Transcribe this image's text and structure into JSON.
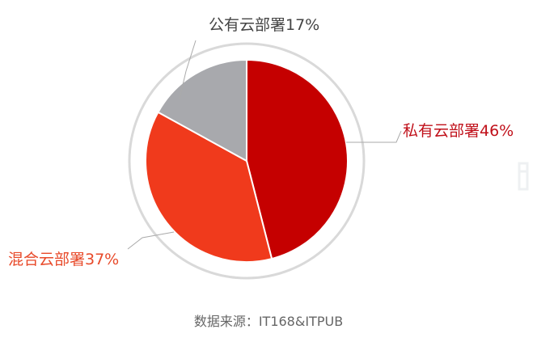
{
  "chart_data": {
    "type": "pie",
    "slices": [
      {
        "label": "私有云部署46%",
        "value": 46,
        "color": "#c50000"
      },
      {
        "label": "混合云部署37%",
        "value": 37,
        "color": "#f03a1c"
      },
      {
        "label": "公有云部署17%",
        "value": 17,
        "color": "#a8a9ad"
      }
    ],
    "label_colors": [
      "#c0101a",
      "#e84a2a",
      "#444444"
    ],
    "start_angle_deg": 0,
    "direction": "clockwise",
    "ring_color": "#d9d9d9",
    "leader_color": "#aaaaaa",
    "legend": "none"
  },
  "source": "数据来源：IT168&ITPUB"
}
